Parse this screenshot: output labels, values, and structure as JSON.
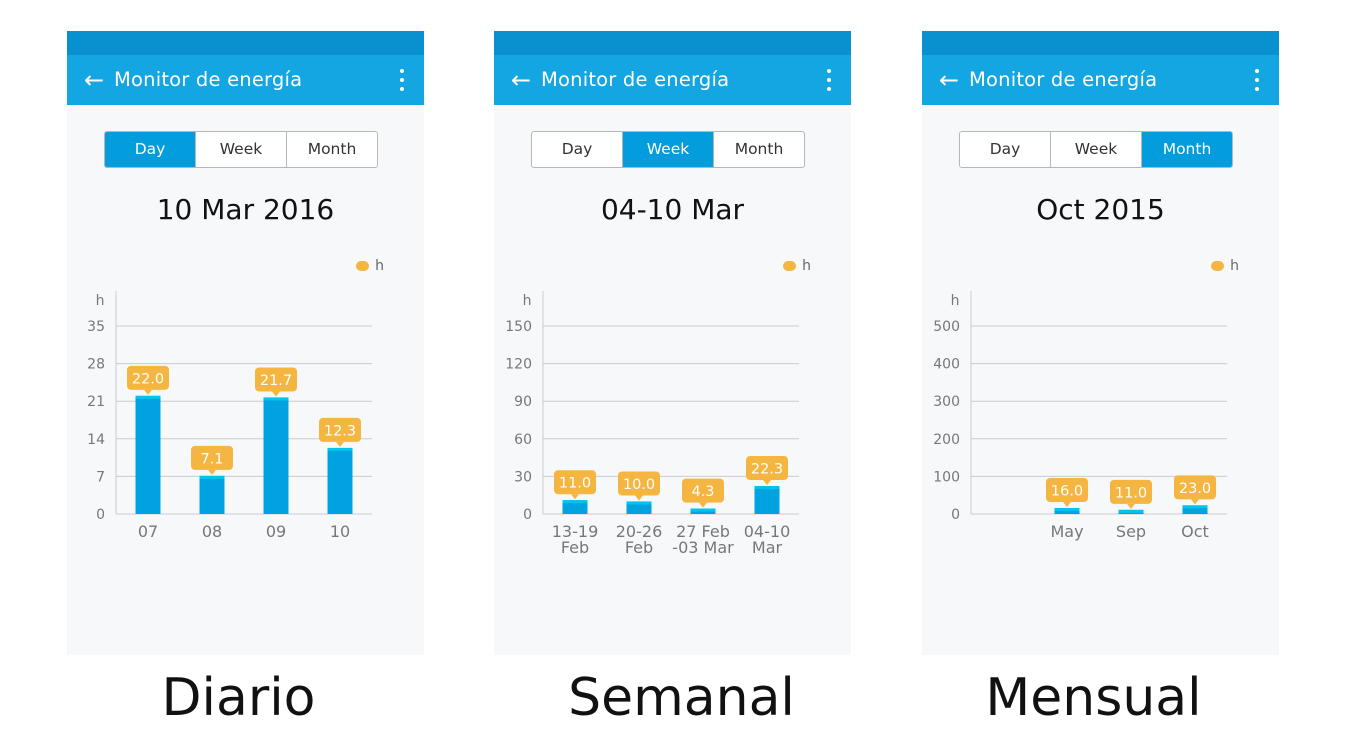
{
  "app_title": "Monitor de energía",
  "tabs": [
    "Day",
    "Week",
    "Month"
  ],
  "colors": {
    "bar": "#00a3e0",
    "bar_top": "#00c4ee",
    "label_bg": "#f4b640",
    "header": "#14a5e3",
    "status": "#0890cf"
  },
  "icons": {
    "back": "arrow-left-icon",
    "menu": "more-vert-icon"
  },
  "panels": [
    {
      "caption": "Diario",
      "active_tab": 0,
      "date": "10 Mar 2016",
      "legend": "h",
      "chart_data": {
        "type": "bar",
        "ylabel": "h",
        "yticks": [
          "0",
          "7",
          "14",
          "21",
          "28",
          "35"
        ],
        "ylim": [
          0,
          35
        ],
        "categories": [
          [
            "07"
          ],
          [
            "08"
          ],
          [
            "09"
          ],
          [
            "10"
          ]
        ],
        "values": [
          22.0,
          7.1,
          21.7,
          12.3
        ],
        "value_labels": [
          "22.0",
          "7.1",
          "21.7",
          "12.3"
        ]
      }
    },
    {
      "caption": "Semanal",
      "active_tab": 1,
      "date": "04-10 Mar",
      "legend": "h",
      "chart_data": {
        "type": "bar",
        "ylabel": "h",
        "yticks": [
          "0",
          "30",
          "60",
          "90",
          "120",
          "150"
        ],
        "ylim": [
          0,
          150
        ],
        "categories": [
          [
            "13-19",
            "Feb"
          ],
          [
            "20-26",
            "Feb"
          ],
          [
            "27 Feb",
            "-03 Mar"
          ],
          [
            "04-10",
            "Mar"
          ]
        ],
        "values": [
          11.0,
          10.0,
          4.3,
          22.3
        ],
        "value_labels": [
          "11.0",
          "10.0",
          "4.3",
          "22.3"
        ]
      }
    },
    {
      "caption": "Mensual",
      "active_tab": 2,
      "date": "Oct 2015",
      "legend": "h",
      "chart_data": {
        "type": "bar",
        "ylabel": "h",
        "yticks": [
          "0",
          "100",
          "200",
          "300",
          "400",
          "500"
        ],
        "ylim": [
          0,
          500
        ],
        "categories": [
          [
            "May"
          ],
          [
            "Sep"
          ],
          [
            "Oct"
          ]
        ],
        "values": [
          16.0,
          11.0,
          23.0
        ],
        "value_labels": [
          "16.0",
          "11.0",
          "23.0"
        ],
        "x_slots": 4,
        "first_slot": 1
      }
    }
  ]
}
